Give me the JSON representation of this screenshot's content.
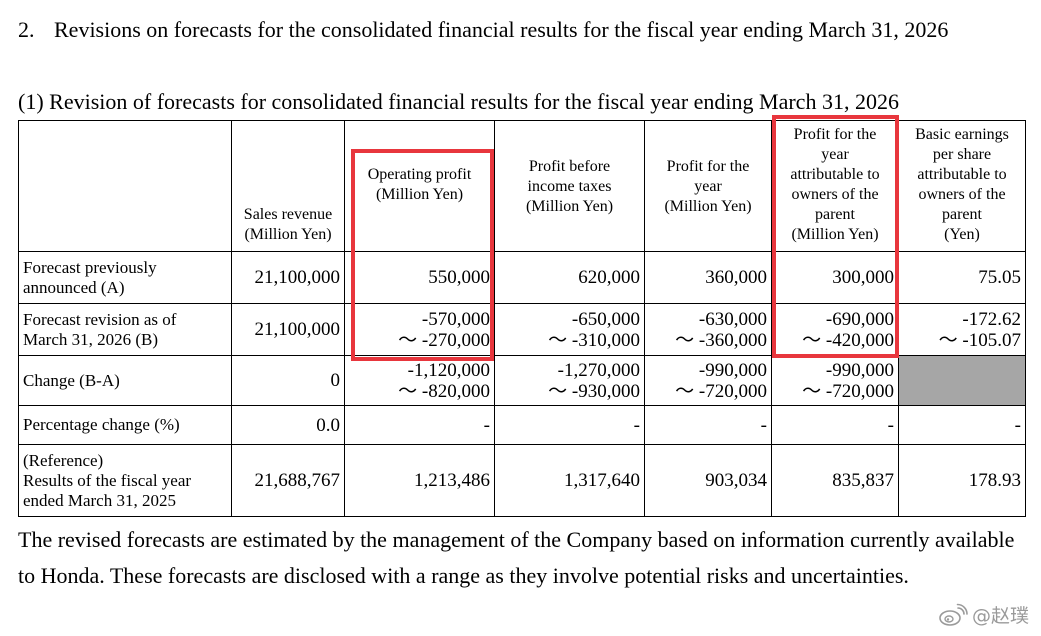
{
  "section": {
    "number": "2.",
    "title": "Revisions on forecasts for the consolidated financial results for the fiscal year ending March 31, 2026"
  },
  "subsection": {
    "title": "(1) Revision of forecasts for consolidated financial results for the fiscal year ending March 31, 2026"
  },
  "table": {
    "headers": [
      [
        "Sales revenue",
        "(Million Yen)"
      ],
      [
        "Operating profit",
        "(Million Yen)"
      ],
      [
        "Profit before",
        "income taxes",
        "(Million Yen)"
      ],
      [
        "Profit for the",
        "year",
        "(Million Yen)"
      ],
      [
        "Profit for the",
        "year",
        "attributable to",
        "owners of the",
        "parent",
        "(Million Yen)"
      ],
      [
        "Basic earnings",
        "per share",
        "attributable to",
        "owners of the",
        "parent",
        "(Yen)"
      ]
    ],
    "rows": [
      {
        "label": [
          "Forecast previously",
          "announced (A)"
        ],
        "cells": [
          [
            "21,100,000"
          ],
          [
            "550,000"
          ],
          [
            "620,000"
          ],
          [
            "360,000"
          ],
          [
            "300,000"
          ],
          [
            "75.05"
          ]
        ]
      },
      {
        "label": [
          "Forecast revision as of",
          "March 31, 2026 (B)"
        ],
        "cells": [
          [
            "21,100,000"
          ],
          [
            "-570,000",
            "～ -270,000"
          ],
          [
            "-650,000",
            "～ -310,000"
          ],
          [
            "-630,000",
            "～ -360,000"
          ],
          [
            "-690,000",
            "～ -420,000"
          ],
          [
            "-172.62",
            "～ -105.07"
          ]
        ]
      },
      {
        "label": [
          "Change (B-A)"
        ],
        "cells": [
          [
            "0"
          ],
          [
            "-1,120,000",
            "～ -820,000"
          ],
          [
            "-1,270,000",
            "～ -930,000"
          ],
          [
            "-990,000",
            "～ -720,000"
          ],
          [
            "-990,000",
            "～ -720,000"
          ],
          []
        ]
      },
      {
        "label": [
          "Percentage change (%)"
        ],
        "cells": [
          [
            "0.0"
          ],
          [
            "-"
          ],
          [
            "-"
          ],
          [
            "-"
          ],
          [
            "-"
          ],
          [
            "-"
          ]
        ]
      },
      {
        "label": [
          "(Reference)",
          "Results of the fiscal year",
          "ended March 31, 2025"
        ],
        "cells": [
          [
            "21,688,767"
          ],
          [
            "1,213,486"
          ],
          [
            "1,317,640"
          ],
          [
            "903,034"
          ],
          [
            "835,837"
          ],
          [
            "178.93"
          ]
        ]
      }
    ]
  },
  "footnote": "The revised forecasts are estimated by the management of the Company based on information currently available to Honda. These forecasts are disclosed with a range as they involve potential risks and uncertainties.",
  "watermark": {
    "icon": "weibo-icon",
    "text": "@赵璞"
  },
  "colors": {
    "highlight": "#e8363d",
    "shaded_cell": "#a6a6a6"
  }
}
